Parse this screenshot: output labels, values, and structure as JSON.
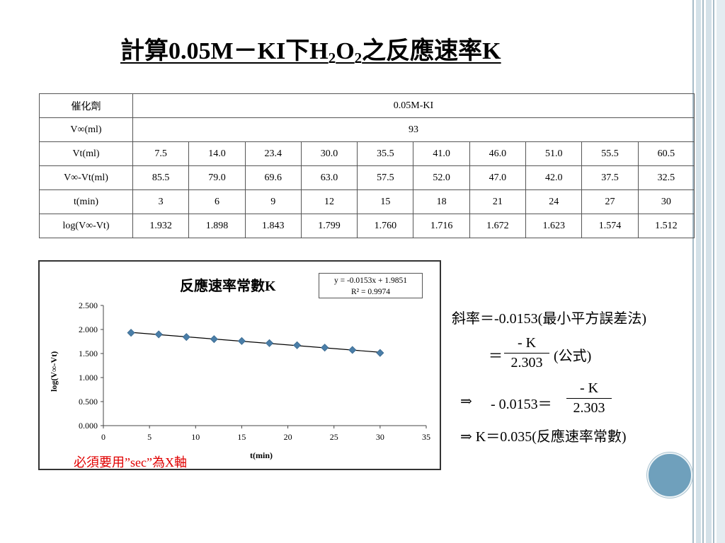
{
  "title": {
    "prefix": "計算0.05M－KI下H",
    "sub1": "2",
    "mid": "O",
    "sub2": "2",
    "suffix": "之反應速率K"
  },
  "table": {
    "catalyst_label": "催化劑",
    "catalyst_value": "0.05M-KI",
    "vinf_label": "V∞(ml)",
    "vinf_value": "93",
    "rows": [
      {
        "label": "Vt(ml)",
        "values": [
          "7.5",
          "14.0",
          "23.4",
          "30.0",
          "35.5",
          "41.0",
          "46.0",
          "51.0",
          "55.5",
          "60.5"
        ]
      },
      {
        "label": "V∞-Vt(ml)",
        "values": [
          "85.5",
          "79.0",
          "69.6",
          "63.0",
          "57.5",
          "52.0",
          "47.0",
          "42.0",
          "37.5",
          "32.5"
        ]
      },
      {
        "label": "t(min)",
        "values": [
          "3",
          "6",
          "9",
          "12",
          "15",
          "18",
          "21",
          "24",
          "27",
          "30"
        ]
      },
      {
        "label": "log(V∞-Vt)",
        "values": [
          "1.932",
          "1.898",
          "1.843",
          "1.799",
          "1.760",
          "1.716",
          "1.672",
          "1.623",
          "1.574",
          "1.512"
        ]
      }
    ]
  },
  "chart_data": {
    "type": "scatter",
    "title": "反應速率常數K",
    "xlabel": "t(min)",
    "ylabel": "log(V∞-Vt)",
    "x": [
      3,
      6,
      9,
      12,
      15,
      18,
      21,
      24,
      27,
      30
    ],
    "y": [
      1.932,
      1.898,
      1.843,
      1.799,
      1.76,
      1.716,
      1.672,
      1.623,
      1.574,
      1.512
    ],
    "xlim": [
      0,
      35
    ],
    "ylim": [
      0,
      2.5
    ],
    "xticks": [
      "0",
      "5",
      "10",
      "15",
      "20",
      "25",
      "30",
      "35"
    ],
    "yticks": [
      "0.000",
      "0.500",
      "1.000",
      "1.500",
      "2.000",
      "2.500"
    ],
    "trendline": {
      "slope": -0.0153,
      "intercept": 1.9851
    },
    "equation": "y = -0.0153x + 1.9851",
    "r2": "R² = 0.9974",
    "marker_color": "#4a7ea8",
    "legend": "none",
    "grid": false
  },
  "note": {
    "text_a": "必須要用",
    "text_b": "”sec”",
    "text_c": "為X軸"
  },
  "derivation": {
    "line1": "斜率＝-0.0153(最小平方誤差法)",
    "line2_eq": "＝",
    "line2_num": "- K",
    "line2_den": "2.303",
    "line2_tail": "(公式)",
    "line3_arrow": "⇒",
    "line3_left": "- 0.0153＝",
    "line3_num": "- K",
    "line3_den": "2.303",
    "line4": "⇒ K＝0.035(反應速率常數)"
  },
  "colors": {
    "accent_circle": "#6fa0bc",
    "note_red": "#e00000"
  }
}
